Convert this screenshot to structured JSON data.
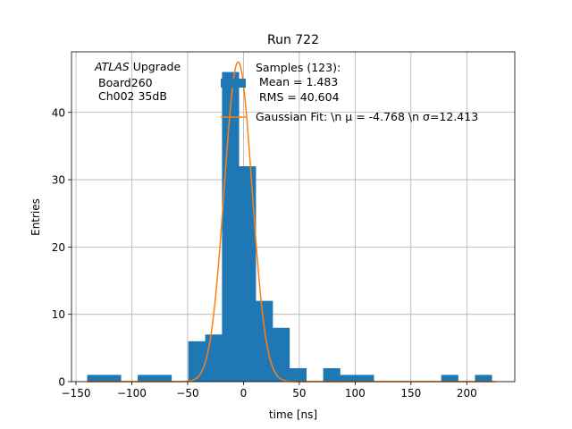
{
  "chart_data": {
    "type": "bar",
    "title": "Run 722",
    "xlabel": "time [ns]",
    "ylabel": "Entries",
    "xlim": [
      -154,
      243
    ],
    "ylim": [
      0,
      49
    ],
    "xticks": [
      -150,
      -100,
      -50,
      0,
      50,
      100,
      150,
      200
    ],
    "xtick_labels": [
      "−150",
      "−100",
      "−50",
      "0",
      "50",
      "100",
      "150",
      "200"
    ],
    "yticks": [
      0,
      10,
      20,
      30,
      40
    ],
    "ytick_labels": [
      "0",
      "10",
      "20",
      "30",
      "40"
    ],
    "grid": true,
    "legend_placement": "top-right",
    "colors": {
      "histogram": "#1f77b4",
      "fit": "#ff7f0e",
      "grid": "#b0b0b0"
    },
    "bin_width": 15.1,
    "bin_edges_start": -140,
    "counts": [
      1,
      1,
      0,
      1,
      1,
      0,
      6,
      7,
      46,
      32,
      12,
      8,
      2,
      0,
      2,
      1,
      1,
      0,
      0,
      0,
      0,
      1,
      0,
      1
    ],
    "fit": {
      "mu": -4.768,
      "sigma": 12.413,
      "amplitude": 47.5
    },
    "legend": {
      "histogram": [
        "Samples (123):",
        " Mean = 1.483",
        " RMS = 40.604"
      ],
      "fit": "Gaussian Fit: \\n μ = -4.768 \\n σ=12.413"
    },
    "annotation": {
      "atlas": "ATLAS",
      "upgrade": " Upgrade",
      "line2": "Board260",
      "line3": "Ch002 35dB"
    }
  }
}
